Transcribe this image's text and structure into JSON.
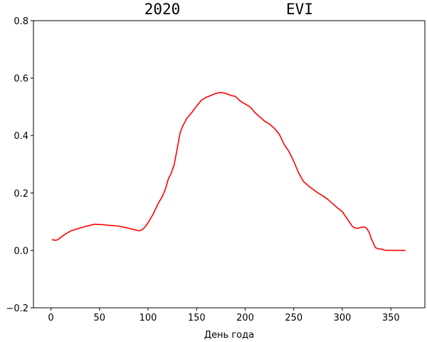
{
  "chart_data": {
    "type": "line",
    "title_left": "2020",
    "title_right": "EVI",
    "xlabel": "День года",
    "ylabel": "",
    "xlim": [
      -18,
      385
    ],
    "ylim": [
      -0.2,
      0.8
    ],
    "x_ticks": [
      0,
      50,
      100,
      150,
      200,
      250,
      300,
      350
    ],
    "y_ticks": [
      -0.2,
      0.0,
      0.2,
      0.4,
      0.6,
      0.8
    ],
    "grid": false,
    "series": [
      {
        "color": "#ff0000",
        "x": [
          1,
          4,
          7,
          10,
          15,
          20,
          25,
          30,
          35,
          40,
          45,
          50,
          55,
          60,
          65,
          70,
          75,
          80,
          85,
          88,
          91,
          94,
          97,
          100,
          105,
          110,
          115,
          118,
          121,
          124,
          127,
          130,
          133,
          136,
          140,
          145,
          150,
          155,
          160,
          165,
          170,
          175,
          180,
          185,
          190,
          195,
          200,
          205,
          210,
          215,
          220,
          225,
          230,
          235,
          240,
          245,
          250,
          255,
          260,
          265,
          270,
          275,
          280,
          285,
          290,
          295,
          300,
          305,
          310,
          313,
          316,
          319,
          322,
          325,
          328,
          330,
          332,
          334,
          337,
          340,
          343,
          345,
          350,
          355,
          360,
          365
        ],
        "y": [
          0.038,
          0.035,
          0.037,
          0.045,
          0.057,
          0.067,
          0.073,
          0.078,
          0.083,
          0.087,
          0.091,
          0.09,
          0.089,
          0.087,
          0.086,
          0.084,
          0.081,
          0.077,
          0.073,
          0.07,
          0.068,
          0.072,
          0.082,
          0.096,
          0.125,
          0.16,
          0.19,
          0.215,
          0.25,
          0.27,
          0.3,
          0.355,
          0.41,
          0.435,
          0.46,
          0.48,
          0.503,
          0.523,
          0.533,
          0.54,
          0.547,
          0.55,
          0.547,
          0.54,
          0.536,
          0.52,
          0.51,
          0.5,
          0.48,
          0.465,
          0.45,
          0.44,
          0.425,
          0.405,
          0.37,
          0.345,
          0.31,
          0.27,
          0.24,
          0.225,
          0.212,
          0.2,
          0.19,
          0.178,
          0.163,
          0.148,
          0.135,
          0.11,
          0.085,
          0.078,
          0.077,
          0.08,
          0.082,
          0.078,
          0.06,
          0.04,
          0.025,
          0.01,
          0.005,
          0.005,
          0.001,
          0.0,
          0.0,
          0.0,
          0.0,
          0.0
        ]
      }
    ]
  }
}
